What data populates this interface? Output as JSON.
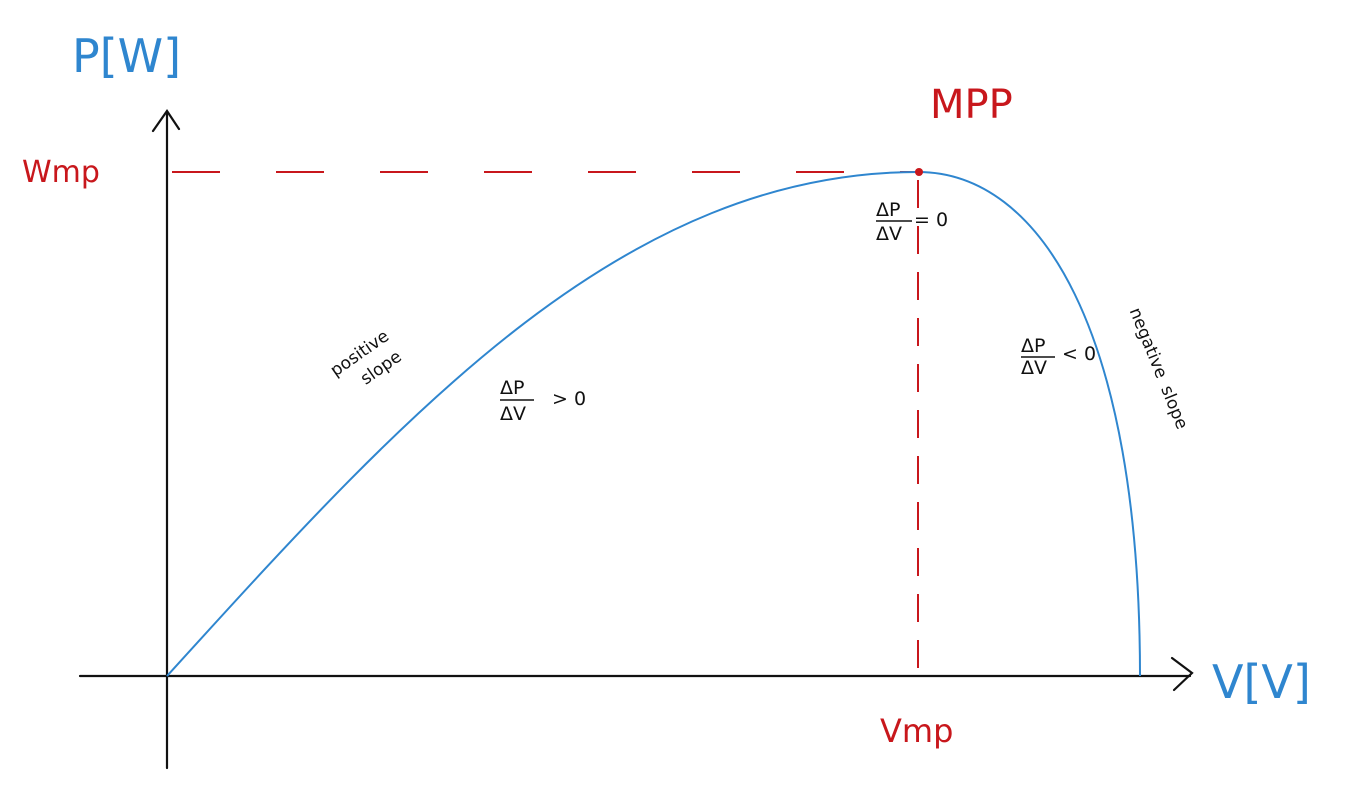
{
  "axes": {
    "y_label": "P[W]",
    "x_label": "V[V]"
  },
  "points": {
    "mpp_label": "MPP",
    "power_label": "Wmp",
    "voltage_label": "Vmp"
  },
  "slopes": {
    "left_note_line1": "positive",
    "left_note_line2": "slope",
    "right_note_line1": "negative",
    "right_note_line2": "slope",
    "frac_numerator": "ΔP",
    "frac_denominator": "ΔV",
    "left_condition": "> 0",
    "peak_condition": "= 0",
    "right_condition": "< 0"
  },
  "colors": {
    "curve": "#2f86cf",
    "reference": "#c8171c",
    "axes": "#111111"
  }
}
